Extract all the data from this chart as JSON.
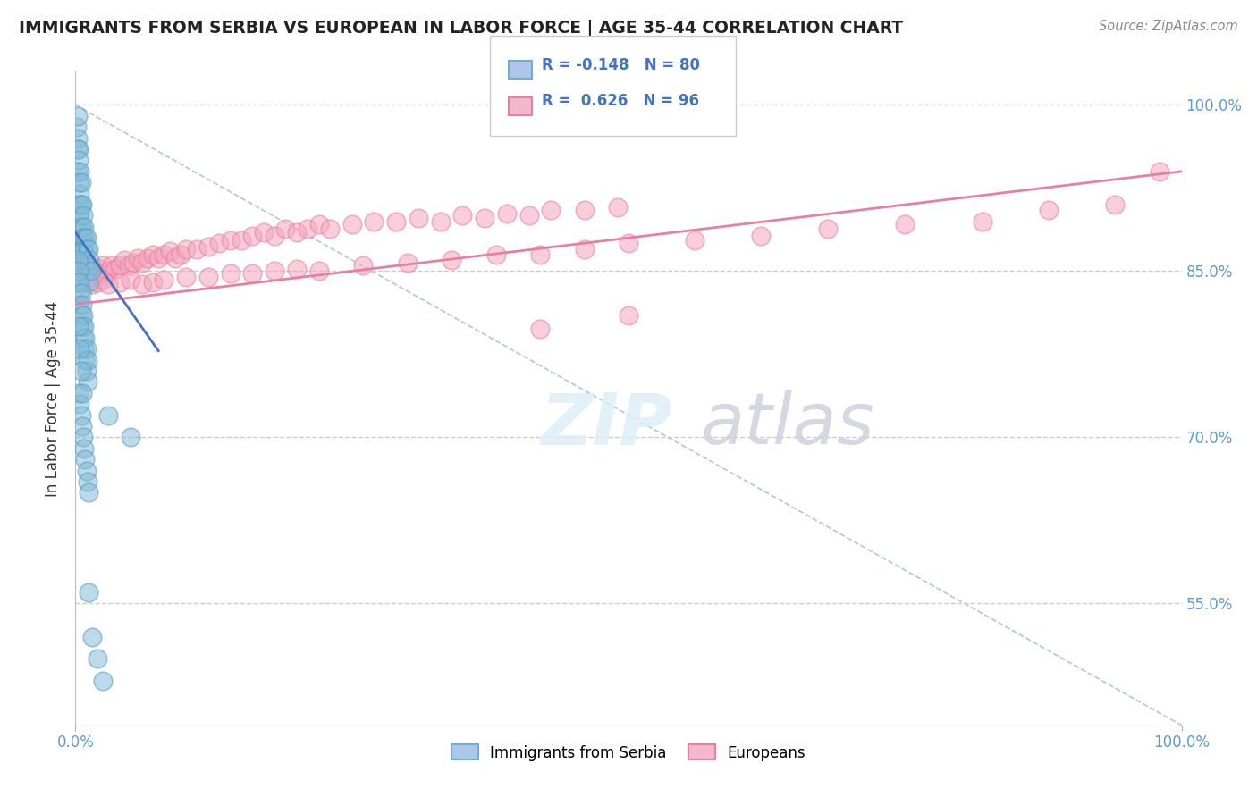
{
  "title": "IMMIGRANTS FROM SERBIA VS EUROPEAN IN LABOR FORCE | AGE 35-44 CORRELATION CHART",
  "source": "Source: ZipAtlas.com",
  "ylabel": "In Labor Force | Age 35-44",
  "xlim": [
    0.0,
    1.0
  ],
  "ylim": [
    0.44,
    1.03
  ],
  "yticks": [
    0.55,
    0.7,
    0.85,
    1.0
  ],
  "ytick_labels": [
    "55.0%",
    "70.0%",
    "85.0%",
    "100.0%"
  ],
  "serbia_color": "#85bcd8",
  "serbia_edge_color": "#5a9ec0",
  "european_color": "#f4a6be",
  "european_edge_color": "#e87fa0",
  "line_serbia_color": "#4472c4",
  "line_euro_color": "#e87fa0",
  "serbia_R": -0.148,
  "serbia_N": 80,
  "european_R": 0.626,
  "european_N": 96,
  "watermark_zip_color": "#d8e8f0",
  "watermark_atlas_color": "#d0cce0",
  "serbia_x": [
    0.001,
    0.002,
    0.002,
    0.002,
    0.002,
    0.003,
    0.003,
    0.003,
    0.003,
    0.003,
    0.004,
    0.004,
    0.004,
    0.004,
    0.004,
    0.005,
    0.005,
    0.005,
    0.005,
    0.005,
    0.006,
    0.006,
    0.006,
    0.006,
    0.007,
    0.007,
    0.007,
    0.008,
    0.008,
    0.008,
    0.009,
    0.009,
    0.01,
    0.01,
    0.011,
    0.011,
    0.012,
    0.012,
    0.013,
    0.014,
    0.002,
    0.002,
    0.003,
    0.003,
    0.004,
    0.004,
    0.005,
    0.005,
    0.006,
    0.006,
    0.007,
    0.007,
    0.008,
    0.008,
    0.009,
    0.009,
    0.01,
    0.01,
    0.011,
    0.011,
    0.003,
    0.004,
    0.005,
    0.006,
    0.007,
    0.008,
    0.009,
    0.01,
    0.011,
    0.012,
    0.003,
    0.004,
    0.005,
    0.006,
    0.03,
    0.05,
    0.012,
    0.015,
    0.02,
    0.025
  ],
  "serbia_y": [
    0.98,
    0.99,
    0.97,
    0.96,
    0.94,
    0.96,
    0.95,
    0.93,
    0.91,
    0.9,
    0.94,
    0.92,
    0.91,
    0.9,
    0.89,
    0.93,
    0.91,
    0.89,
    0.88,
    0.87,
    0.91,
    0.89,
    0.88,
    0.87,
    0.9,
    0.88,
    0.87,
    0.89,
    0.87,
    0.86,
    0.88,
    0.86,
    0.88,
    0.85,
    0.87,
    0.85,
    0.87,
    0.84,
    0.86,
    0.85,
    0.86,
    0.84,
    0.85,
    0.83,
    0.84,
    0.82,
    0.83,
    0.81,
    0.82,
    0.8,
    0.81,
    0.79,
    0.8,
    0.78,
    0.79,
    0.77,
    0.78,
    0.76,
    0.77,
    0.75,
    0.74,
    0.73,
    0.72,
    0.71,
    0.7,
    0.69,
    0.68,
    0.67,
    0.66,
    0.65,
    0.8,
    0.78,
    0.76,
    0.74,
    0.72,
    0.7,
    0.56,
    0.52,
    0.5,
    0.48
  ],
  "european_x": [
    0.001,
    0.002,
    0.003,
    0.004,
    0.005,
    0.006,
    0.007,
    0.008,
    0.009,
    0.01,
    0.012,
    0.014,
    0.016,
    0.018,
    0.02,
    0.022,
    0.025,
    0.028,
    0.03,
    0.033,
    0.036,
    0.04,
    0.044,
    0.048,
    0.052,
    0.056,
    0.06,
    0.065,
    0.07,
    0.075,
    0.08,
    0.085,
    0.09,
    0.095,
    0.1,
    0.11,
    0.12,
    0.13,
    0.14,
    0.15,
    0.16,
    0.17,
    0.18,
    0.19,
    0.2,
    0.21,
    0.22,
    0.23,
    0.25,
    0.27,
    0.29,
    0.31,
    0.33,
    0.35,
    0.37,
    0.39,
    0.41,
    0.43,
    0.46,
    0.49,
    0.003,
    0.006,
    0.01,
    0.015,
    0.02,
    0.025,
    0.03,
    0.04,
    0.05,
    0.06,
    0.07,
    0.08,
    0.1,
    0.12,
    0.14,
    0.16,
    0.18,
    0.2,
    0.22,
    0.26,
    0.3,
    0.34,
    0.38,
    0.42,
    0.46,
    0.5,
    0.56,
    0.62,
    0.68,
    0.75,
    0.82,
    0.88,
    0.94,
    0.98,
    0.5,
    0.42
  ],
  "european_y": [
    0.855,
    0.86,
    0.852,
    0.848,
    0.85,
    0.845,
    0.855,
    0.848,
    0.852,
    0.85,
    0.848,
    0.852,
    0.845,
    0.85,
    0.848,
    0.852,
    0.855,
    0.848,
    0.85,
    0.855,
    0.852,
    0.855,
    0.86,
    0.855,
    0.858,
    0.862,
    0.858,
    0.862,
    0.865,
    0.862,
    0.865,
    0.868,
    0.862,
    0.865,
    0.87,
    0.87,
    0.872,
    0.875,
    0.878,
    0.878,
    0.882,
    0.885,
    0.882,
    0.888,
    0.885,
    0.888,
    0.892,
    0.888,
    0.892,
    0.895,
    0.895,
    0.898,
    0.895,
    0.9,
    0.898,
    0.902,
    0.9,
    0.905,
    0.905,
    0.908,
    0.84,
    0.838,
    0.842,
    0.838,
    0.84,
    0.842,
    0.838,
    0.84,
    0.842,
    0.838,
    0.84,
    0.842,
    0.845,
    0.845,
    0.848,
    0.848,
    0.85,
    0.852,
    0.85,
    0.855,
    0.858,
    0.86,
    0.865,
    0.865,
    0.87,
    0.875,
    0.878,
    0.882,
    0.888,
    0.892,
    0.895,
    0.905,
    0.91,
    0.94,
    0.81,
    0.798
  ]
}
